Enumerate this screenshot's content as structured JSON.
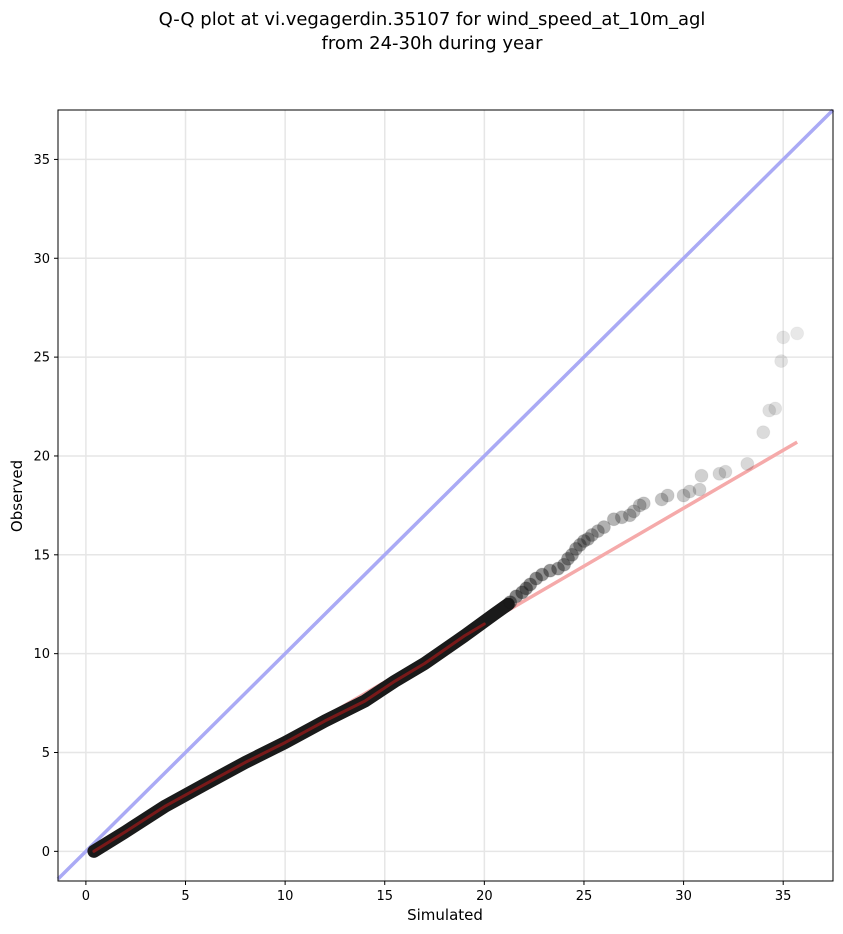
{
  "chart_data": {
    "type": "scatter",
    "title": {
      "line1": "Q-Q plot at vi.vegagerdin.35107 for wind_speed_at_10m_agl",
      "line2": "from 24-30h during year"
    },
    "xlabel": "Simulated",
    "ylabel": "Observed",
    "xlim": [
      -1.4,
      37.5
    ],
    "ylim": [
      -1.5,
      37.5
    ],
    "xticks": [
      0,
      5,
      10,
      15,
      20,
      25,
      30,
      35
    ],
    "yticks": [
      0,
      5,
      10,
      15,
      20,
      25,
      30,
      35
    ],
    "grid": true,
    "reference_line": {
      "name": "1:1",
      "color": "#aaaaf5",
      "x": [
        -1.4,
        37.5
      ],
      "y": [
        -1.4,
        37.5
      ]
    },
    "fit_line": {
      "color": "#f5aaaa",
      "x": [
        0.4,
        35.7
      ],
      "y": [
        0.0,
        20.7
      ]
    },
    "dense_segment": {
      "color": "#1a1a1a",
      "x": [
        0.4,
        2.0,
        4.0,
        6.0,
        8.0,
        10.0,
        12.0,
        14.0,
        15.5,
        17.0,
        19.0,
        20.5,
        21.2
      ],
      "y": [
        0.0,
        1.0,
        2.3,
        3.4,
        4.5,
        5.5,
        6.6,
        7.6,
        8.6,
        9.5,
        10.9,
        12.0,
        12.5
      ]
    },
    "overlay_segment": {
      "color": "#8b1a1a",
      "x": [
        0.4,
        2.0,
        4.0,
        6.0,
        8.0,
        10.0,
        12.0,
        14.0,
        15.5,
        17.0,
        19.0,
        20.0
      ],
      "y": [
        0.0,
        1.0,
        2.3,
        3.4,
        4.5,
        5.5,
        6.6,
        7.6,
        8.6,
        9.5,
        10.9,
        11.5
      ]
    },
    "points": [
      {
        "x": 21.3,
        "y": 12.6
      },
      {
        "x": 21.6,
        "y": 12.9
      },
      {
        "x": 21.9,
        "y": 13.1
      },
      {
        "x": 22.1,
        "y": 13.3
      },
      {
        "x": 22.3,
        "y": 13.5
      },
      {
        "x": 22.6,
        "y": 13.8
      },
      {
        "x": 22.9,
        "y": 14.0
      },
      {
        "x": 23.3,
        "y": 14.2
      },
      {
        "x": 23.7,
        "y": 14.3
      },
      {
        "x": 24.0,
        "y": 14.5
      },
      {
        "x": 24.2,
        "y": 14.8
      },
      {
        "x": 24.4,
        "y": 15.0
      },
      {
        "x": 24.6,
        "y": 15.3
      },
      {
        "x": 24.8,
        "y": 15.5
      },
      {
        "x": 25.0,
        "y": 15.7
      },
      {
        "x": 25.2,
        "y": 15.8
      },
      {
        "x": 25.4,
        "y": 16.0
      },
      {
        "x": 25.7,
        "y": 16.2
      },
      {
        "x": 26.0,
        "y": 16.4
      },
      {
        "x": 26.5,
        "y": 16.8
      },
      {
        "x": 26.9,
        "y": 16.9
      },
      {
        "x": 27.3,
        "y": 17.0
      },
      {
        "x": 27.5,
        "y": 17.2
      },
      {
        "x": 27.8,
        "y": 17.5
      },
      {
        "x": 28.0,
        "y": 17.6
      },
      {
        "x": 28.9,
        "y": 17.8
      },
      {
        "x": 29.2,
        "y": 18.0
      },
      {
        "x": 30.0,
        "y": 18.0
      },
      {
        "x": 30.3,
        "y": 18.2
      },
      {
        "x": 30.8,
        "y": 18.3
      },
      {
        "x": 30.9,
        "y": 19.0
      },
      {
        "x": 31.8,
        "y": 19.1
      },
      {
        "x": 32.1,
        "y": 19.2
      },
      {
        "x": 33.2,
        "y": 19.6
      },
      {
        "x": 34.0,
        "y": 21.2
      },
      {
        "x": 34.3,
        "y": 22.3
      },
      {
        "x": 34.6,
        "y": 22.4
      },
      {
        "x": 34.9,
        "y": 24.8
      },
      {
        "x": 35.0,
        "y": 26.0
      },
      {
        "x": 35.7,
        "y": 26.2
      }
    ]
  }
}
